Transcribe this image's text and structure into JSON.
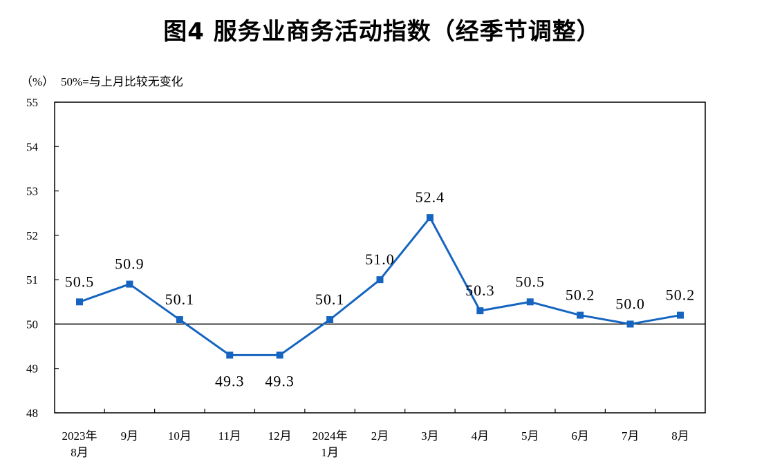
{
  "title": "图4  服务业商务活动指数（经季节调整）",
  "unit_label": "（%）",
  "reference_note": "50%=与上月比较无变化",
  "colors": {
    "series": "#1565C0",
    "axis": "#000000"
  },
  "chart_data": {
    "type": "line",
    "title": "图4  服务业商务活动指数（经季节调整）",
    "ylabel": "（%）",
    "xlabel": "",
    "ylim": [
      48,
      55
    ],
    "yticks": [
      "48",
      "49",
      "50",
      "51",
      "52",
      "53",
      "54",
      "55"
    ],
    "reference_line": 50,
    "categories": [
      [
        "2023年",
        "8月"
      ],
      [
        "9月"
      ],
      [
        "10月"
      ],
      [
        "11月"
      ],
      [
        "12月"
      ],
      [
        "2024年",
        "1月"
      ],
      [
        "2月"
      ],
      [
        "3月"
      ],
      [
        "4月"
      ],
      [
        "5月"
      ],
      [
        "6月"
      ],
      [
        "7月"
      ],
      [
        "8月"
      ]
    ],
    "series": [
      {
        "values": [
          50.5,
          50.9,
          50.1,
          49.3,
          49.3,
          50.1,
          51.0,
          52.4,
          50.3,
          50.5,
          50.2,
          50.0,
          50.2
        ],
        "labels": [
          "50.5",
          "50.9",
          "50.1",
          "49.3",
          "49.3",
          "50.1",
          "51.0",
          "52.4",
          "50.3",
          "50.5",
          "50.2",
          "50.0",
          "50.2"
        ]
      }
    ]
  }
}
